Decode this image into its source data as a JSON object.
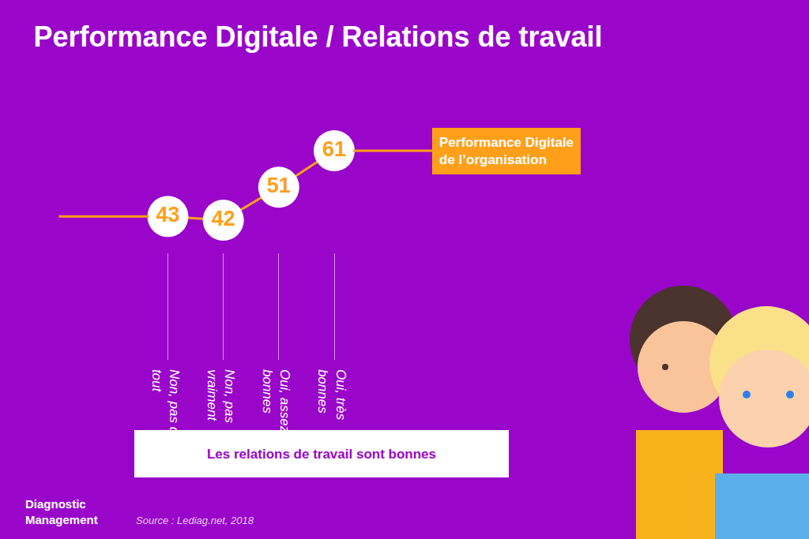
{
  "chart_data": {
    "type": "line",
    "title": "Performance Digitale / Relations de travail",
    "x_label": "Les relations de travail sont bonnes",
    "categories": [
      "Non, pas du tout",
      "Non, pas vraiment",
      "Oui, assez bonnes",
      "Oui, très bonnes"
    ],
    "series": [
      {
        "name": "Performance Digitale de l’organisation",
        "color": "#ff9f1a",
        "values": [
          43,
          42,
          51,
          61
        ]
      }
    ],
    "data_labels": true,
    "tick_labels": "x",
    "marker": "circle"
  },
  "source": "Source : Lediag.net, 2018",
  "logo": "Diagnostic Management"
}
